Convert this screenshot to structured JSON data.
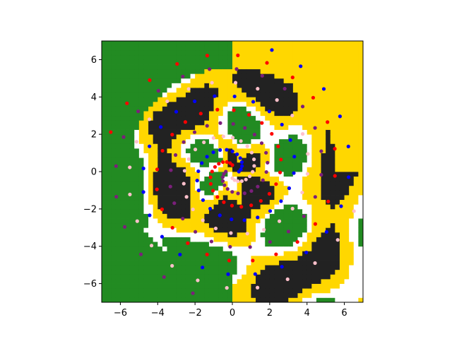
{
  "chart_data": {
    "type": "scatter",
    "title": "",
    "xlabel": "",
    "ylabel": "",
    "xlim": [
      -7,
      7
    ],
    "ylim": [
      -7,
      7
    ],
    "grid": false,
    "legend": "none",
    "xticks": [
      -6,
      -4,
      -2,
      0,
      2,
      4,
      6
    ],
    "yticks": [
      -6,
      -4,
      -2,
      0,
      2,
      4,
      6
    ],
    "xtick_labels": [
      "−6",
      "−4",
      "−2",
      "0",
      "2",
      "4",
      "6"
    ],
    "ytick_labels": [
      "−6",
      "−4",
      "−2",
      "0",
      "2",
      "4",
      "6"
    ],
    "background_regions": {
      "description_colors": {
        "class_a": "#228b22",
        "class_b": "#ffd700",
        "class_c": "#222222"
      },
      "note": "dense decision-region grid of small dots covering the axes"
    },
    "series": [
      {
        "color": "#0000ff",
        "spiral_turns": 2.2,
        "phase_deg": 0,
        "points": 54
      },
      {
        "color": "#ff0000",
        "spiral_turns": 2.2,
        "phase_deg": 90,
        "points": 54
      },
      {
        "color": "#7b1f7b",
        "spiral_turns": 2.2,
        "phase_deg": 180,
        "points": 54
      },
      {
        "color": "#ffc0cb",
        "spiral_turns": 2.2,
        "phase_deg": 270,
        "points": 54
      }
    ],
    "colors": {
      "green": "#228b22",
      "yellow": "#ffd700",
      "black": "#222222",
      "blue": "#0000ff",
      "red": "#ff0000",
      "purple": "#7b1f7b",
      "pink": "#ffc0cb"
    }
  }
}
